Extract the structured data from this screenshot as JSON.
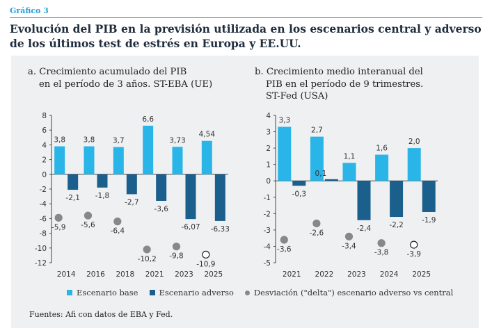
{
  "figure_label": "Gráfico 3",
  "title_line1": "Evolución del PIB en la previsión utilizada en los escenarios central y adverso",
  "title_line2": "de los últimos test de estrés en Europa y EE.UU.",
  "colors": {
    "base": "#29b5e8",
    "adverse": "#1b5f8c",
    "delta": "#888888",
    "accent": "#2a9fd8"
  },
  "legend": {
    "base": "Escenario base",
    "adverse": "Escenario adverso",
    "delta": "Desviación (\"delta\") escenario adverso vs central"
  },
  "source": "Fuentes: Afi con datos de EBA y Fed.",
  "chart_data": [
    {
      "type": "bar",
      "title_line1": "a. Crecimiento acumulado del PIB",
      "title_line2": "en el período de 3 años. ST-EBA (UE)",
      "categories": [
        "2014",
        "2016",
        "2018",
        "2021",
        "2023",
        "2025"
      ],
      "ylim": [
        -12,
        8
      ],
      "yticks": [
        8,
        6,
        4,
        2,
        0,
        -2,
        -4,
        -6,
        -8,
        -10,
        -12
      ],
      "series": [
        {
          "name": "Escenario base",
          "values": [
            3.8,
            3.8,
            3.7,
            6.6,
            3.73,
            4.54
          ],
          "labels": [
            "3,8",
            "3,8",
            "3,7",
            "6,6",
            "3,73",
            "4,54"
          ]
        },
        {
          "name": "Escenario adverso",
          "values": [
            -2.1,
            -1.8,
            -2.7,
            -3.6,
            -6.07,
            -6.33
          ],
          "labels": [
            "-2,1",
            "-1,8",
            "-2,7",
            "-3,6",
            "-6,07",
            "-6,33"
          ]
        },
        {
          "name": "Desviación (\"delta\") escenario adverso vs central",
          "values": [
            -5.9,
            -5.6,
            -6.4,
            -10.2,
            -9.8,
            -10.9
          ],
          "labels": [
            "-5,9",
            "-5,6",
            "-6,4",
            "-10,2",
            "-9,8",
            "-10,9"
          ],
          "hollow": [
            false,
            false,
            false,
            false,
            false,
            true
          ]
        }
      ]
    },
    {
      "type": "bar",
      "title_line1": "b. Crecimiento medio interanual del",
      "title_line2": "PIB en el período de 9 trimestres.",
      "title_line3": "ST-Fed (USA)",
      "categories": [
        "2021",
        "2022",
        "2023",
        "2024",
        "2025"
      ],
      "ylim": [
        -5,
        4
      ],
      "yticks": [
        4,
        3,
        2,
        1,
        0,
        -1,
        -2,
        -3,
        -4,
        -5
      ],
      "series": [
        {
          "name": "Escenario base",
          "values": [
            3.3,
            2.7,
            1.1,
            1.6,
            2.0
          ],
          "labels": [
            "3,3",
            "2,7",
            "1,1",
            "1,6",
            "2,0"
          ]
        },
        {
          "name": "Escenario adverso",
          "values": [
            -0.3,
            0.1,
            -2.4,
            -2.2,
            -1.9
          ],
          "labels": [
            "-0,3",
            "0,1",
            "-2,4",
            "-2,2",
            "-1,9"
          ]
        },
        {
          "name": "Desviación (\"delta\") escenario adverso vs central",
          "values": [
            -3.6,
            -2.6,
            -3.4,
            -3.8,
            -3.9
          ],
          "labels": [
            "-3,6",
            "-2,6",
            "-3,4",
            "-3,8",
            "-3,9"
          ],
          "hollow": [
            false,
            false,
            false,
            false,
            true
          ]
        }
      ]
    }
  ]
}
